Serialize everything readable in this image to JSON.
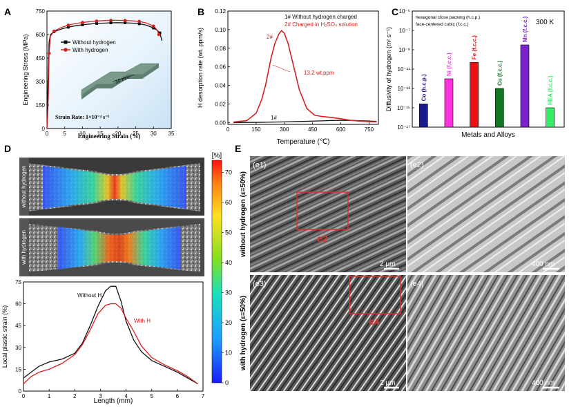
{
  "panels": {
    "A": {
      "letter": "A"
    },
    "B": {
      "letter": "B"
    },
    "C": {
      "letter": "C"
    },
    "D": {
      "letter": "D"
    },
    "E": {
      "letter": "E"
    }
  },
  "colors": {
    "black_curve": "#111111",
    "red_curve": "#d62020",
    "panel_bg_blue": "#d8ecf8",
    "co_bar": "#1a1a8c",
    "ni_bar": "#ff33dd",
    "fe_bar": "#ee1111",
    "cu_bar": "#117722",
    "mn_bar": "#7a22cc",
    "hea_bar": "#33ee66"
  },
  "chart_data": [
    {
      "id": "A",
      "type": "line",
      "xlabel": "Engineering Strain (%)",
      "ylabel": "Engineering Stress (MPa)",
      "xlim": [
        0,
        35
      ],
      "ylim": [
        0,
        750
      ],
      "xticks": [
        "0",
        "5",
        "10",
        "15",
        "20",
        "25",
        "30",
        "35"
      ],
      "yticks": [
        "0",
        "150",
        "300",
        "450",
        "600",
        "750"
      ],
      "annotation": "Strain Rate: 1×10⁻⁴ s⁻¹",
      "inset_label": "10 mm",
      "legend_placement": "top-right",
      "series": [
        {
          "name": "Without hydrogen",
          "color": "#111111",
          "x": [
            0,
            0.3,
            0.6,
            1,
            2,
            4,
            6,
            8,
            10,
            12,
            14,
            16,
            18,
            20,
            22,
            24,
            26,
            28,
            30,
            31,
            31.8,
            32.4
          ],
          "y": [
            0,
            300,
            550,
            600,
            618,
            635,
            647,
            656,
            662,
            667,
            671,
            673,
            675,
            676,
            675,
            673,
            669,
            660,
            642,
            628,
            610,
            560
          ]
        },
        {
          "name": "With hydrogen",
          "color": "#d62020",
          "x": [
            0,
            0.2,
            0.4,
            0.6,
            1,
            2,
            4,
            6,
            8,
            10,
            12,
            14,
            16,
            18,
            20,
            22,
            24,
            26,
            28,
            30,
            31,
            31.5
          ],
          "y": [
            0,
            80,
            220,
            480,
            590,
            622,
            645,
            660,
            670,
            677,
            682,
            686,
            689,
            691,
            691,
            690,
            688,
            684,
            674,
            654,
            630,
            600
          ]
        }
      ]
    },
    {
      "id": "B",
      "type": "line",
      "xlabel": "Temperature (℃)",
      "ylabel": "H desorption rate (wt. ppm/s)",
      "xlim": [
        0,
        800
      ],
      "ylim": [
        -0.002,
        0.12
      ],
      "xticks": [
        "0",
        "150",
        "300",
        "450",
        "600",
        "750"
      ],
      "yticks": [
        "0.00",
        "0.02",
        "0.04",
        "0.06",
        "0.08",
        "0.10",
        "0.12"
      ],
      "legend": [
        "1# Without hydrogen charged",
        "2# Charged in H₂SO₄ solution"
      ],
      "annotations": [
        "2#",
        "13.2 wt.ppm",
        "1#"
      ],
      "series": [
        {
          "name": "1#",
          "color": "#111111",
          "x": [
            30,
            100,
            200,
            300,
            400,
            500,
            550,
            600,
            650,
            700,
            750,
            790
          ],
          "y": [
            0.0,
            0.0001,
            0.0003,
            0.0007,
            0.0012,
            0.0018,
            0.0022,
            0.0024,
            0.0023,
            0.002,
            0.0016,
            0.0012
          ]
        },
        {
          "name": "2#",
          "color": "#d62020",
          "x": [
            30,
            100,
            150,
            180,
            200,
            230,
            250,
            270,
            285,
            300,
            320,
            350,
            380,
            420,
            460,
            500,
            550,
            600,
            650,
            700,
            750,
            790
          ],
          "y": [
            0.0005,
            0.002,
            0.01,
            0.025,
            0.04,
            0.07,
            0.085,
            0.095,
            0.099,
            0.096,
            0.085,
            0.06,
            0.035,
            0.015,
            0.008,
            0.0065,
            0.0055,
            0.004,
            0.0025,
            0.0015,
            0.001,
            0.0008
          ]
        }
      ]
    },
    {
      "id": "C",
      "type": "bar",
      "xlabel": "Metals and Alloys",
      "ylabel": "Diffusivity of hydrogen (m² s⁻¹)",
      "scale": "log",
      "ylim_exponent": [
        -17,
        -5
      ],
      "yticks": [
        "10⁻¹⁷",
        "10⁻¹⁵",
        "10⁻¹³",
        "10⁻¹¹",
        "10⁻⁹",
        "10⁻⁷",
        "10⁻⁵"
      ],
      "legend_lines": [
        "hexagonal close packing (h.c.p.)",
        "face-centered cubic (f.c.c.)"
      ],
      "condition": "300 K",
      "categories": [
        "Co (h.c.p.)",
        "Ni (f.c.c.)",
        "Fe (f.c.c.)",
        "Cu (f.c.c.)",
        "Mn (f.c.c.)",
        "HEA (f.c.c.)"
      ],
      "log10_values": [
        -14.6,
        -12.0,
        -10.3,
        -13.0,
        -8.5,
        -15.0
      ]
    },
    {
      "id": "D",
      "type": "line",
      "xlabel": "Length (mm)",
      "ylabel": "Local plastic strain (%)",
      "xlim": [
        0,
        7
      ],
      "ylim": [
        0,
        75
      ],
      "xticks": [
        "0",
        "1",
        "2",
        "3",
        "4",
        "5",
        "6",
        "7"
      ],
      "yticks": [
        "0",
        "15",
        "30",
        "45",
        "60",
        "75"
      ],
      "colorbar_unit": "[%]",
      "colorbar_ticks": [
        "0",
        "10",
        "20",
        "30",
        "40",
        "50",
        "60",
        "70"
      ],
      "image_labels": [
        "without hydrogen",
        "with hydrogen"
      ],
      "series": [
        {
          "name": "Without H",
          "color": "#111111",
          "x": [
            0,
            0.3,
            0.6,
            1,
            1.5,
            2,
            2.3,
            2.6,
            2.9,
            3.2,
            3.4,
            3.6,
            3.8,
            4.0,
            4.3,
            4.6,
            5,
            5.5,
            6,
            6.4,
            6.8
          ],
          "y": [
            9,
            13,
            17,
            20,
            22,
            26,
            33,
            45,
            58,
            69,
            72,
            72,
            62,
            48,
            35,
            27,
            21,
            17,
            13,
            9,
            5
          ]
        },
        {
          "name": "With H",
          "color": "#d62020",
          "x": [
            0,
            0.3,
            0.6,
            1,
            1.5,
            2,
            2.3,
            2.6,
            2.9,
            3.2,
            3.4,
            3.6,
            3.8,
            4.0,
            4.3,
            4.6,
            5,
            5.5,
            6,
            6.4,
            6.8
          ],
          "y": [
            5,
            10,
            13,
            15,
            19,
            25,
            32,
            42,
            53,
            59,
            60,
            60,
            57,
            50,
            41,
            31,
            23,
            18,
            14,
            10,
            5
          ]
        }
      ]
    }
  ],
  "panel_E": {
    "row_labels": [
      "without hydrogen (ε=50%)",
      "with hydrogen (ε=50%)"
    ],
    "tiles": [
      {
        "label": "(e1)",
        "scale": "2 μm",
        "callout": "e2"
      },
      {
        "label": "(e2)",
        "scale": "400 nm"
      },
      {
        "label": "(e3)",
        "scale": "2 μm",
        "callout": "e4"
      },
      {
        "label": "(e4)",
        "scale": "400 nm"
      }
    ]
  }
}
